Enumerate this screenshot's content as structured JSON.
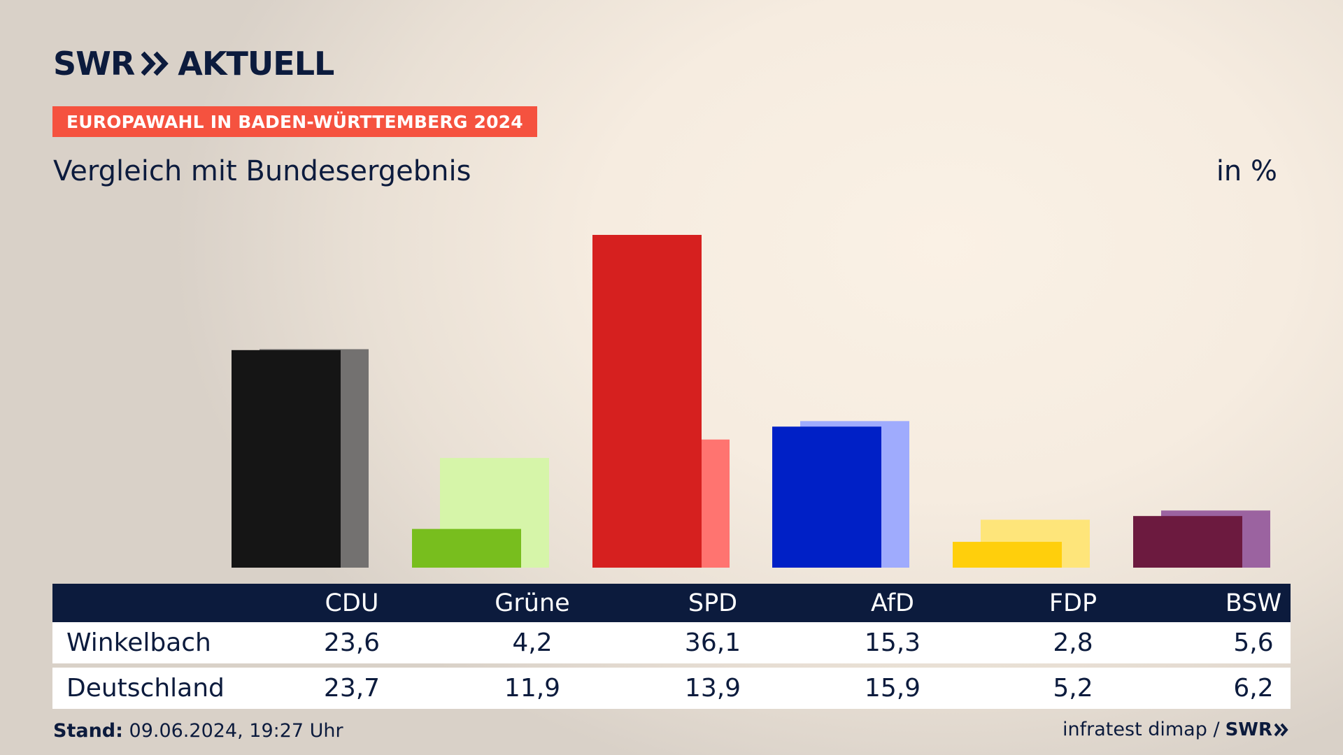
{
  "brand": {
    "name": "SWR",
    "suffix": "AKTUELL"
  },
  "badge": "EUROPAWAHL IN BADEN-WÜRTTEMBERG 2024",
  "subtitle": "Vergleich mit Bundesergebnis",
  "unit": "in %",
  "table": {
    "headers": [
      "CDU",
      "Grüne",
      "SPD",
      "AfD",
      "FDP",
      "BSW"
    ],
    "rows": [
      {
        "label": "Winkelbach",
        "values": [
          "23,6",
          "4,2",
          "36,1",
          "15,3",
          "2,8",
          "5,6"
        ]
      },
      {
        "label": "Deutschland",
        "values": [
          "23,7",
          "11,9",
          "13,9",
          "15,9",
          "5,2",
          "6,2"
        ]
      }
    ]
  },
  "footer": {
    "stand_label": "Stand:",
    "stand_value": "09.06.2024, 19:27 Uhr",
    "source": "infratest dimap /",
    "source_logo": "SWR"
  },
  "chart_data": {
    "type": "bar",
    "categories": [
      "CDU",
      "Grüne",
      "SPD",
      "AfD",
      "FDP",
      "BSW"
    ],
    "series": [
      {
        "name": "Winkelbach",
        "values": [
          23.6,
          4.2,
          36.1,
          15.3,
          2.8,
          5.6
        ],
        "colors": [
          "#151515",
          "#78be1e",
          "#d6201f",
          "#0020c6",
          "#ffcf0c",
          "#6c1a3f"
        ]
      },
      {
        "name": "Deutschland",
        "values": [
          23.7,
          11.9,
          13.9,
          15.9,
          5.2,
          6.2
        ],
        "colors": [
          "#737170",
          "#d6f5a9",
          "#ff7470",
          "#9fabfd",
          "#fee57a",
          "#9b63a0"
        ]
      }
    ],
    "ylim": [
      0,
      36.1
    ]
  }
}
